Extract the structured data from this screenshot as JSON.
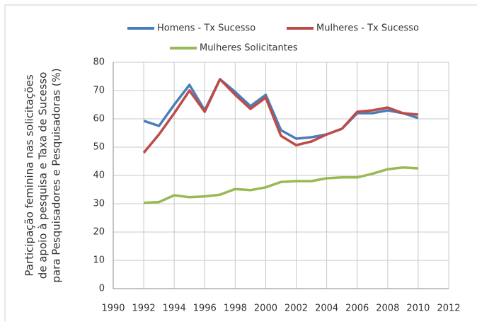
{
  "chart_data": {
    "type": "line",
    "y_label": [
      "Participação feminina nas solicitações",
      "de apoio à pesquisa e Taxa de Sucesso",
      "para Pesquisadores e Pesquisadoras (%)"
    ],
    "x": [
      1992,
      1993,
      1994,
      1995,
      1996,
      1997,
      1998,
      1999,
      2000,
      2001,
      2002,
      2003,
      2004,
      2005,
      2006,
      2007,
      2008,
      2009,
      2010
    ],
    "series": [
      {
        "name": "Homens - Tx Sucesso",
        "color": "#4a7ebb",
        "values": [
          59.3,
          57.5,
          65,
          72,
          63,
          74,
          69.5,
          64.5,
          68.5,
          56,
          53,
          53.5,
          54.5,
          56.5,
          62,
          62,
          63,
          62,
          60.3
        ]
      },
      {
        "name": "Mulheres - Tx Sucesso",
        "color": "#be4b48",
        "values": [
          48,
          54.5,
          62,
          70,
          62.5,
          74,
          68.5,
          63.5,
          67.5,
          54,
          50.7,
          52,
          54.5,
          56.5,
          62.5,
          63,
          64,
          62,
          61.5
        ]
      },
      {
        "name": "Mulheres Solicitantes",
        "color": "#98b954",
        "values": [
          30.3,
          30.6,
          33,
          32.3,
          32.6,
          33.2,
          35.2,
          34.8,
          35.8,
          37.7,
          38,
          38,
          39,
          39.3,
          39.3,
          40.6,
          42.2,
          42.8,
          42.5
        ]
      }
    ],
    "xlim": [
      1990,
      2012
    ],
    "xticks": [
      1990,
      1992,
      1994,
      1996,
      1998,
      2000,
      2002,
      2004,
      2006,
      2008,
      2010,
      2012
    ],
    "ylim": [
      0,
      80
    ],
    "yticks": [
      0,
      10,
      20,
      30,
      40,
      50,
      60,
      70,
      80
    ],
    "grid": true,
    "legend": "top"
  }
}
